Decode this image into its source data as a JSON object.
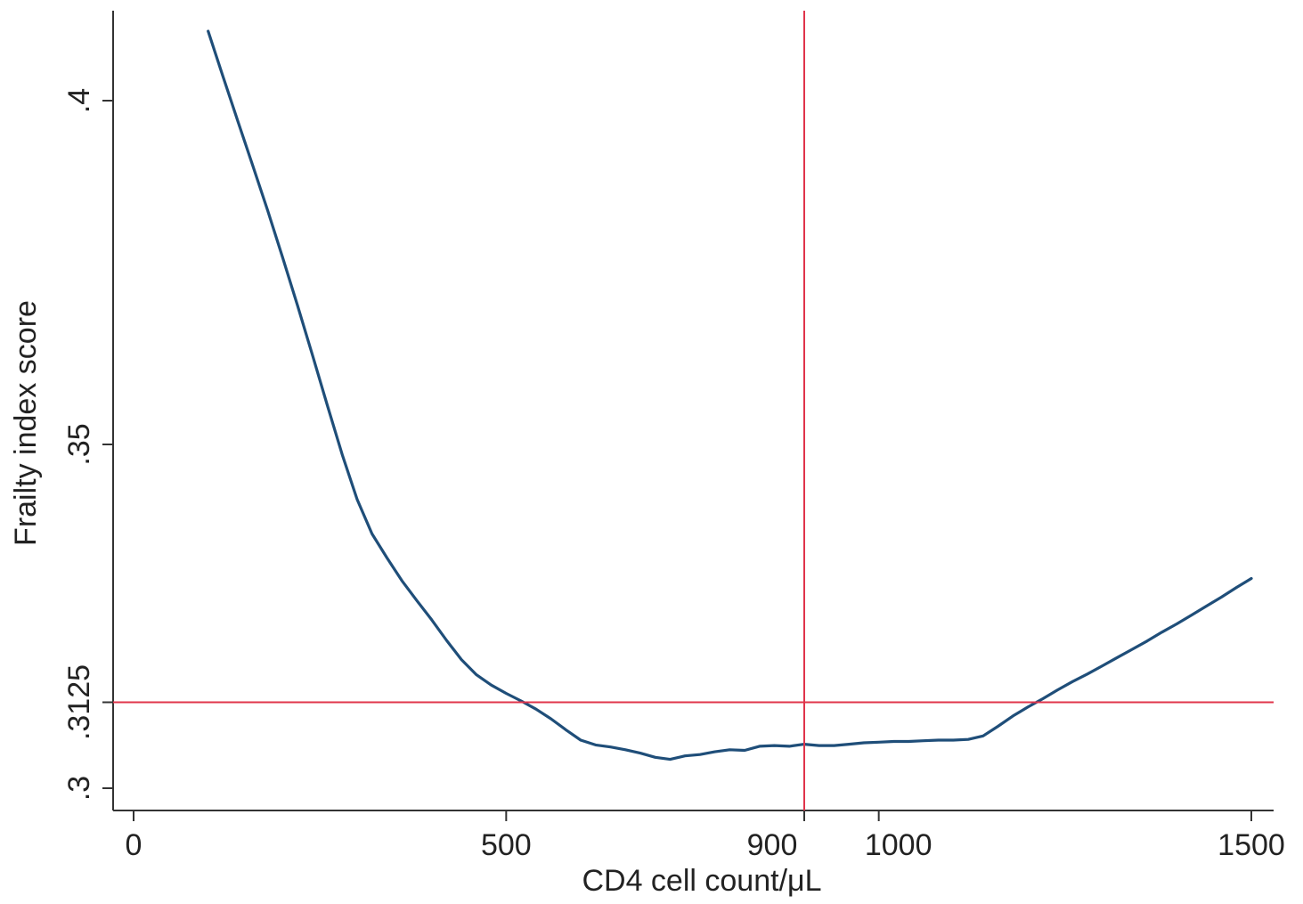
{
  "chart_data": {
    "type": "line",
    "title": "",
    "xlabel": "CD4 cell count/μL",
    "ylabel": "Frailty index score",
    "xlim": [
      -30,
      1530
    ],
    "ylim": [
      0.297,
      0.4125
    ],
    "x_ticks": [
      {
        "value": 0,
        "label": "0"
      },
      {
        "value": 500,
        "label": "500"
      },
      {
        "value": 900,
        "label": "900"
      },
      {
        "value": 1000,
        "label": "1000"
      },
      {
        "value": 1500,
        "label": "1500"
      }
    ],
    "y_ticks": [
      {
        "value": 0.3,
        "label": ".3"
      },
      {
        "value": 0.3125,
        "label": ".3125"
      },
      {
        "value": 0.35,
        "label": ".35"
      },
      {
        "value": 0.4,
        "label": ".4"
      }
    ],
    "grid": false,
    "series": [
      {
        "color": "#1f4e79",
        "points": [
          [
            100,
            0.4101
          ],
          [
            120,
            0.4035
          ],
          [
            140,
            0.397
          ],
          [
            160,
            0.3905
          ],
          [
            180,
            0.384
          ],
          [
            200,
            0.3772
          ],
          [
            220,
            0.3702
          ],
          [
            240,
            0.363
          ],
          [
            260,
            0.3557
          ],
          [
            280,
            0.3485
          ],
          [
            300,
            0.342
          ],
          [
            320,
            0.337
          ],
          [
            340,
            0.3335
          ],
          [
            360,
            0.3302
          ],
          [
            380,
            0.3273
          ],
          [
            400,
            0.3245
          ],
          [
            420,
            0.3215
          ],
          [
            440,
            0.3187
          ],
          [
            460,
            0.3165
          ],
          [
            480,
            0.315
          ],
          [
            500,
            0.3138
          ],
          [
            520,
            0.3127
          ],
          [
            540,
            0.3115
          ],
          [
            560,
            0.3101
          ],
          [
            580,
            0.3085
          ],
          [
            600,
            0.307
          ],
          [
            620,
            0.3063
          ],
          [
            640,
            0.306
          ],
          [
            660,
            0.3056
          ],
          [
            680,
            0.3051
          ],
          [
            700,
            0.3045
          ],
          [
            720,
            0.3042
          ],
          [
            740,
            0.3047
          ],
          [
            760,
            0.3049
          ],
          [
            780,
            0.3053
          ],
          [
            800,
            0.3056
          ],
          [
            820,
            0.3055
          ],
          [
            840,
            0.3061
          ],
          [
            860,
            0.3062
          ],
          [
            880,
            0.3061
          ],
          [
            900,
            0.3064
          ],
          [
            920,
            0.3062
          ],
          [
            940,
            0.3062
          ],
          [
            960,
            0.3064
          ],
          [
            980,
            0.3066
          ],
          [
            1000,
            0.3067
          ],
          [
            1020,
            0.3068
          ],
          [
            1040,
            0.3068
          ],
          [
            1060,
            0.3069
          ],
          [
            1080,
            0.307
          ],
          [
            1100,
            0.307
          ],
          [
            1120,
            0.3071
          ],
          [
            1140,
            0.3076
          ],
          [
            1160,
            0.309
          ],
          [
            1180,
            0.3105
          ],
          [
            1200,
            0.3118
          ],
          [
            1220,
            0.313
          ],
          [
            1240,
            0.3143
          ],
          [
            1260,
            0.3155
          ],
          [
            1280,
            0.3166
          ],
          [
            1300,
            0.3178
          ],
          [
            1320,
            0.319
          ],
          [
            1340,
            0.3202
          ],
          [
            1360,
            0.3214
          ],
          [
            1380,
            0.3227
          ],
          [
            1400,
            0.3239
          ],
          [
            1420,
            0.3252
          ],
          [
            1440,
            0.3265
          ],
          [
            1460,
            0.3278
          ],
          [
            1480,
            0.3292
          ],
          [
            1500,
            0.3305
          ]
        ]
      }
    ],
    "reference_lines": [
      {
        "orientation": "vertical",
        "value": 900,
        "color": "#e0344b"
      },
      {
        "orientation": "horizontal",
        "value": 0.3125,
        "color": "#e0344b"
      }
    ],
    "axis_color": "#333333",
    "background": "#ffffff"
  }
}
